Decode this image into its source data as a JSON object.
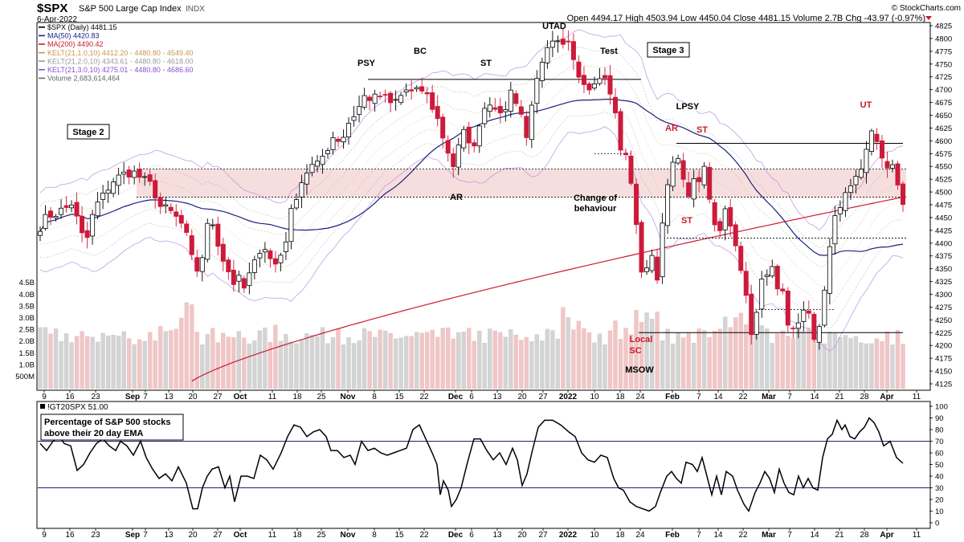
{
  "header": {
    "symbol": "$SPX",
    "name": "S&P 500 Large Cap Index",
    "exchange": "INDX",
    "date": "6-Apr-2022",
    "credit": "© StockCharts.com",
    "ohlc_text": "Open 4494.17  High 4503.94  Low 4450.04  Close 4481.15  Volume 2.7B  Chg -43.97 (-0.97%)"
  },
  "colors": {
    "ma50": "#1a237e",
    "ma200": "#cc1a2e",
    "kelt1": "#d4b07a",
    "kelt2": "#9a9a9a",
    "kelt3": "#b58be0",
    "candle_down": "#cc1a3a",
    "candle_up": "#ffffff",
    "volume_up": "#d4d4d4",
    "volume_down": "#f0c6c6",
    "zone": "#f7dede",
    "annotation_red": "#cc1a2e"
  },
  "chart_data": [
    {
      "type": "candlestick",
      "name": "$SPX (Daily)",
      "ylim": [
        4105,
        4830
      ],
      "yticks": [
        4125,
        4150,
        4175,
        4200,
        4225,
        4250,
        4275,
        4300,
        4325,
        4350,
        4375,
        4400,
        4425,
        4450,
        4475,
        4500,
        4525,
        4550,
        4575,
        4600,
        4625,
        4650,
        4675,
        4700,
        4725,
        4750,
        4775,
        4800,
        4825
      ],
      "xticks": [
        "9",
        "16",
        "23",
        "Sep",
        "7",
        "13",
        "20",
        "27",
        "Oct",
        "11",
        "18",
        "25",
        "Nov",
        "8",
        "15",
        "22",
        "Dec",
        "6",
        "13",
        "20",
        "27",
        "2022",
        "10",
        "18",
        "24",
        "Feb",
        "7",
        "14",
        "22",
        "Mar",
        "7",
        "14",
        "21",
        "28",
        "Apr",
        "11"
      ],
      "volume_ticks": [
        "500M",
        "1.0B",
        "1.5B",
        "2.0B",
        "2.5B",
        "3.0B",
        "3.5B",
        "4.0B",
        "4.5B"
      ],
      "legend": [
        {
          "label": "$SPX (Daily) 4481.15",
          "color": "#000000"
        },
        {
          "label": "MA(50) 4420.83",
          "color": "#1a237e"
        },
        {
          "label": "MA(200) 4490.42",
          "color": "#cc1a2e"
        },
        {
          "label": "KELT(21,1.0,10) 4412.20 - 4480.80 - 4549.40",
          "color": "#c8964a"
        },
        {
          "label": "KELT(21,2.0,10) 4343.61 - 4480.80 - 4618.00",
          "color": "#9a9a9a"
        },
        {
          "label": "KELT(21,3.0,10) 4275.01 - 4480.80 - 4686.60",
          "color": "#8a4fd0"
        },
        {
          "label": "Volume 2,683,614,464",
          "color": "#666666"
        }
      ],
      "annotations": {
        "stage2": "Stage 2",
        "stage3": "Stage 3",
        "psy": "PSY",
        "bc": "BC",
        "st1": "ST",
        "utad": "UTAD",
        "test": "Test",
        "ar1": "AR",
        "change1": "Change of",
        "change2": "behaviour",
        "lpsy": "LPSY",
        "ar2": "AR",
        "st2": "ST",
        "st3": "ST",
        "localsc1": "Local",
        "localsc2": "SC",
        "msow": "MSOW",
        "ut": "UT"
      },
      "levels": {
        "range_top": 4720,
        "zone_high": 4545,
        "zone_low": 4490,
        "mid_line": 4595,
        "support": 4410,
        "low_line": 4225
      }
    },
    {
      "type": "line",
      "name": "!GT20SPX",
      "legend": "!GT20SPX 51.00",
      "ylim": [
        -3,
        103
      ],
      "yticks": [
        0,
        10,
        20,
        30,
        40,
        50,
        60,
        70,
        80,
        90,
        100
      ],
      "reference_lines": [
        70,
        30
      ],
      "label_box": [
        "Percentage of S&P 500 stocks",
        "above their 20 day EMA"
      ]
    }
  ]
}
